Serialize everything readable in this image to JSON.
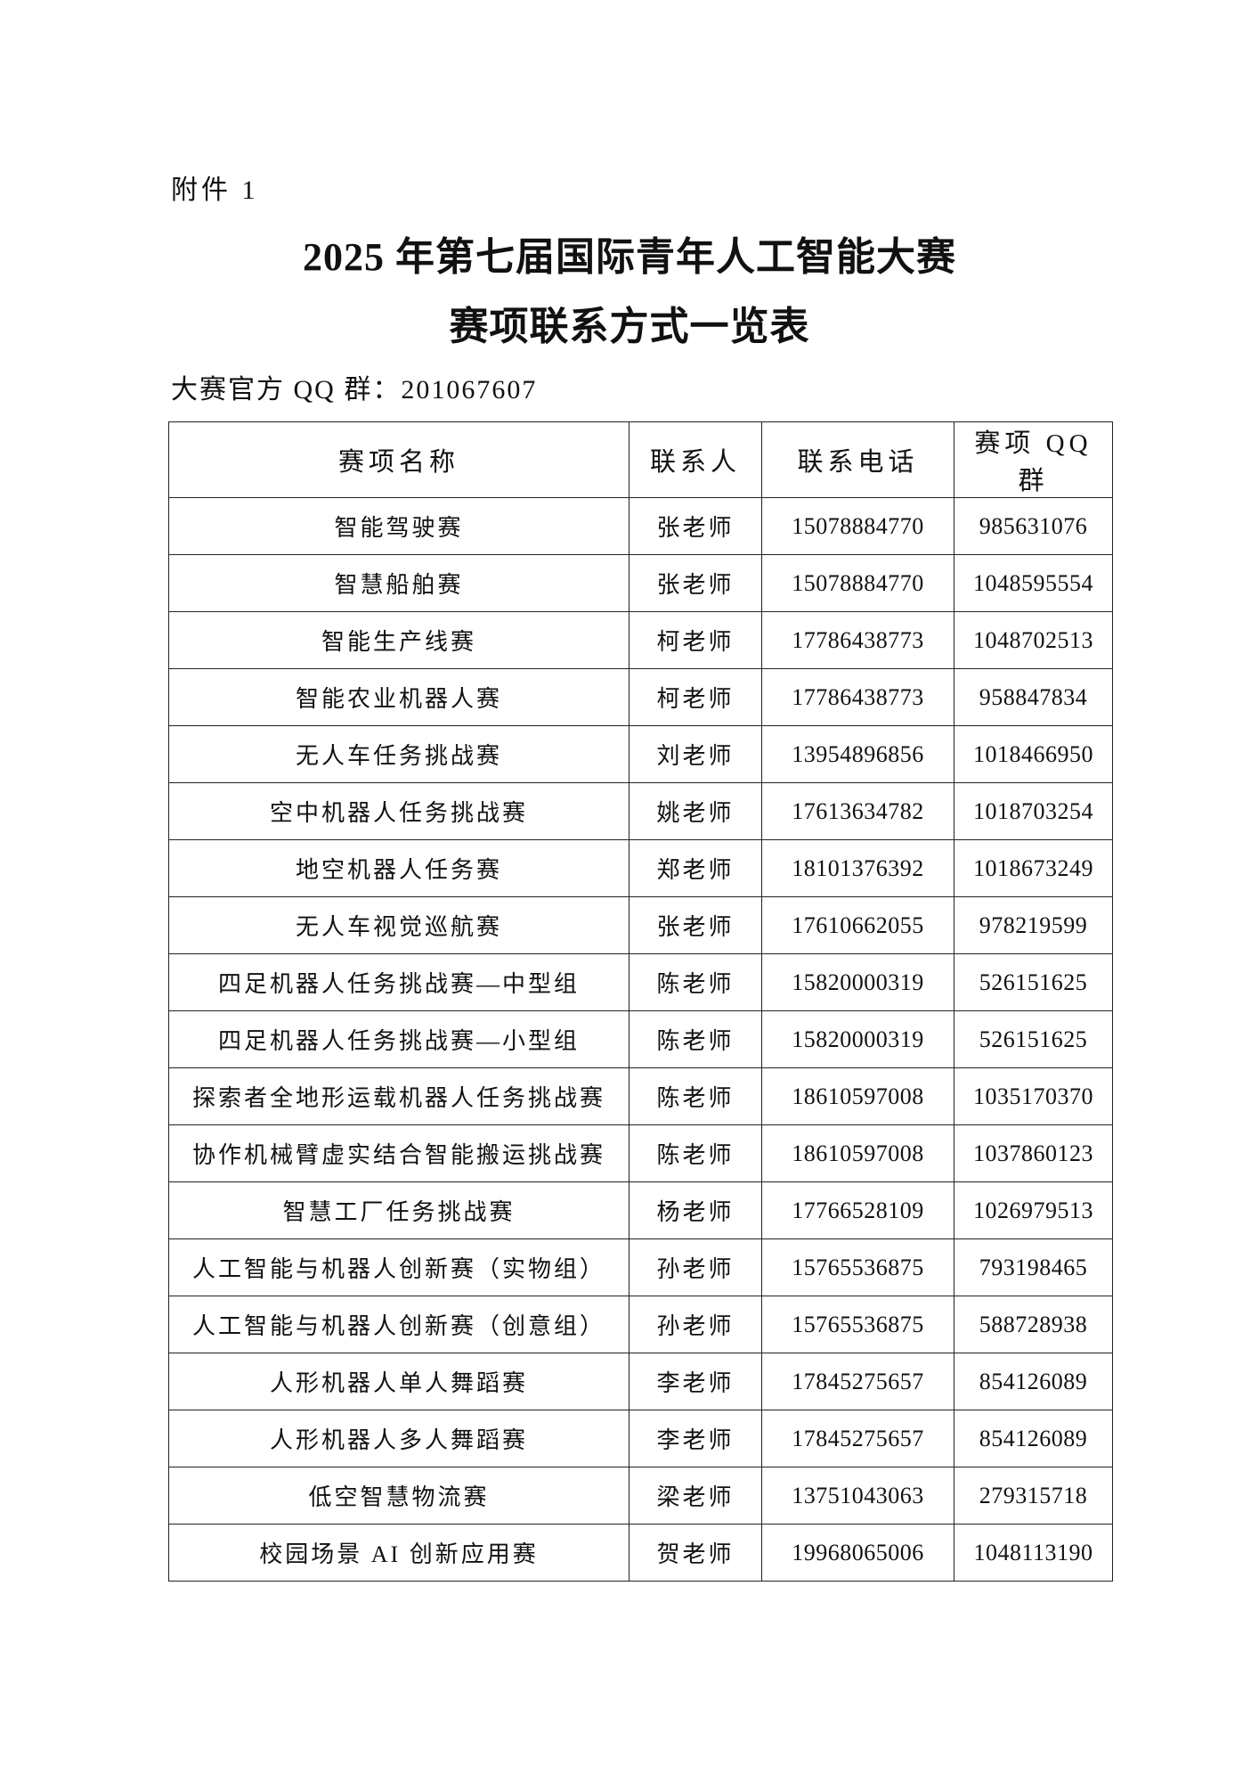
{
  "attachment_label": "附件 1",
  "title_line1": "2025 年第七届国际青年人工智能大赛",
  "title_line2": "赛项联系方式一览表",
  "official_qq": "大赛官方 QQ 群：201067607",
  "table": {
    "headers": [
      "赛项名称",
      "联系人",
      "联系电话",
      "赛项 QQ 群"
    ],
    "rows": [
      [
        "智能驾驶赛",
        "张老师",
        "15078884770",
        "985631076"
      ],
      [
        "智慧船舶赛",
        "张老师",
        "15078884770",
        "1048595554"
      ],
      [
        "智能生产线赛",
        "柯老师",
        "17786438773",
        "1048702513"
      ],
      [
        "智能农业机器人赛",
        "柯老师",
        "17786438773",
        "958847834"
      ],
      [
        "无人车任务挑战赛",
        "刘老师",
        "13954896856",
        "1018466950"
      ],
      [
        "空中机器人任务挑战赛",
        "姚老师",
        "17613634782",
        "1018703254"
      ],
      [
        "地空机器人任务赛",
        "郑老师",
        "18101376392",
        "1018673249"
      ],
      [
        "无人车视觉巡航赛",
        "张老师",
        "17610662055",
        "978219599"
      ],
      [
        "四足机器人任务挑战赛—中型组",
        "陈老师",
        "15820000319",
        "526151625"
      ],
      [
        "四足机器人任务挑战赛—小型组",
        "陈老师",
        "15820000319",
        "526151625"
      ],
      [
        "探索者全地形运载机器人任务挑战赛",
        "陈老师",
        "18610597008",
        "1035170370"
      ],
      [
        "协作机械臂虚实结合智能搬运挑战赛",
        "陈老师",
        "18610597008",
        "1037860123"
      ],
      [
        "智慧工厂任务挑战赛",
        "杨老师",
        "17766528109",
        "1026979513"
      ],
      [
        "人工智能与机器人创新赛（实物组）",
        "孙老师",
        "15765536875",
        "793198465"
      ],
      [
        "人工智能与机器人创新赛（创意组）",
        "孙老师",
        "15765536875",
        "588728938"
      ],
      [
        "人形机器人单人舞蹈赛",
        "李老师",
        "17845275657",
        "854126089"
      ],
      [
        "人形机器人多人舞蹈赛",
        "李老师",
        "17845275657",
        "854126089"
      ],
      [
        "低空智慧物流赛",
        "梁老师",
        "13751043063",
        "279315718"
      ],
      [
        "校园场景 AI 创新应用赛",
        "贺老师",
        "19968065006",
        "1048113190"
      ]
    ]
  }
}
